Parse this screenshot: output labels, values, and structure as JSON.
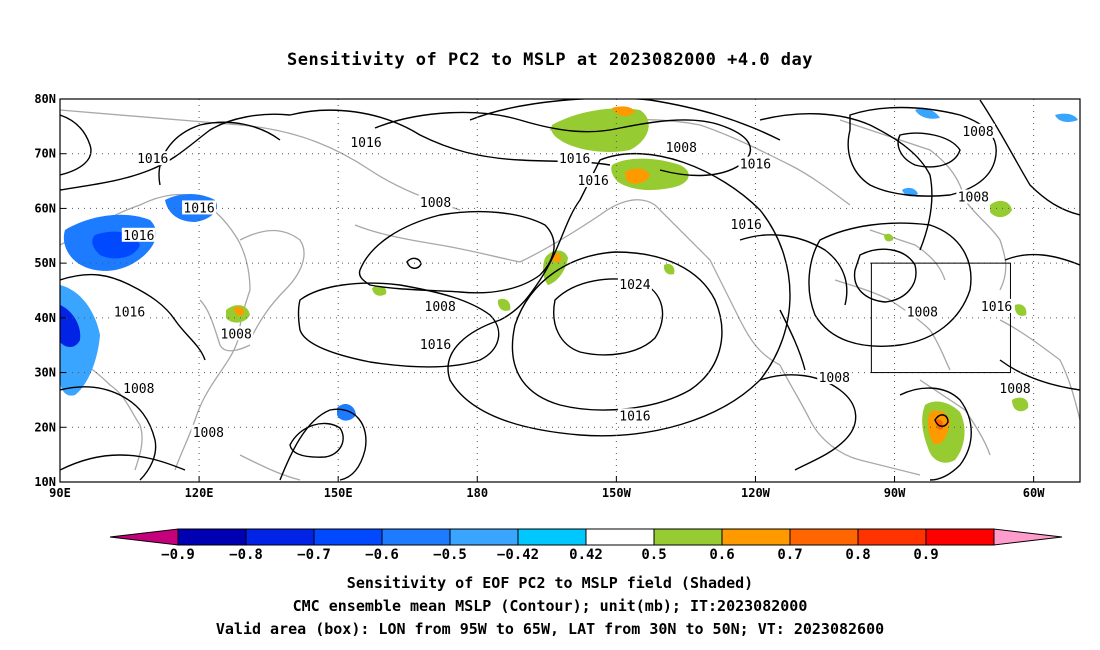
{
  "title": "Sensitivity of PC2 to MSLP at 2023082000 +4.0 day",
  "map": {
    "extent": {
      "lon_min": 90,
      "lon_max": 310,
      "lat_min": 10,
      "lat_max": 80
    },
    "lat_ticks": [
      {
        "value": 80,
        "label": "80N"
      },
      {
        "value": 70,
        "label": "70N"
      },
      {
        "value": 60,
        "label": "60N"
      },
      {
        "value": 50,
        "label": "50N"
      },
      {
        "value": 40,
        "label": "40N"
      },
      {
        "value": 30,
        "label": "30N"
      },
      {
        "value": 20,
        "label": "20N"
      },
      {
        "value": 10,
        "label": "10N"
      }
    ],
    "lon_ticks": [
      {
        "value": 90,
        "label": "90E"
      },
      {
        "value": 120,
        "label": "120E"
      },
      {
        "value": 150,
        "label": "150E"
      },
      {
        "value": 180,
        "label": "180"
      },
      {
        "value": 210,
        "label": "150W"
      },
      {
        "value": 240,
        "label": "120W"
      },
      {
        "value": 270,
        "label": "90W"
      },
      {
        "value": 300,
        "label": "60W"
      }
    ],
    "grid": "dotted",
    "contour_labels": [
      {
        "text": "1016",
        "lon": 156,
        "lat": 72
      },
      {
        "text": "1016",
        "lon": 110,
        "lat": 69
      },
      {
        "text": "1008",
        "lon": 224,
        "lat": 71
      },
      {
        "text": "1016",
        "lon": 201,
        "lat": 69
      },
      {
        "text": "1016",
        "lon": 240,
        "lat": 68
      },
      {
        "text": "1016",
        "lon": 205,
        "lat": 65
      },
      {
        "text": "1008",
        "lon": 288,
        "lat": 74
      },
      {
        "text": "1016",
        "lon": 120,
        "lat": 60
      },
      {
        "text": "1016",
        "lon": 107,
        "lat": 55
      },
      {
        "text": "1008",
        "lon": 171,
        "lat": 61
      },
      {
        "text": "1008",
        "lon": 287,
        "lat": 62
      },
      {
        "text": "1016",
        "lon": 238,
        "lat": 57
      },
      {
        "text": "1024",
        "lon": 214,
        "lat": 46
      },
      {
        "text": "1008",
        "lon": 172,
        "lat": 42
      },
      {
        "text": "1016",
        "lon": 105,
        "lat": 41
      },
      {
        "text": "1008",
        "lon": 276,
        "lat": 41
      },
      {
        "text": "1016",
        "lon": 292,
        "lat": 42
      },
      {
        "text": "1008",
        "lon": 128,
        "lat": 37
      },
      {
        "text": "1016",
        "lon": 171,
        "lat": 35
      },
      {
        "text": "1008",
        "lon": 107,
        "lat": 27
      },
      {
        "text": "1008",
        "lon": 257,
        "lat": 29
      },
      {
        "text": "1008",
        "lon": 296,
        "lat": 27
      },
      {
        "text": "1016",
        "lon": 214,
        "lat": 22
      },
      {
        "text": "1008",
        "lon": 122,
        "lat": 19
      }
    ],
    "valid_box": {
      "lon_min": 265,
      "lon_max": 295,
      "lat_min": 30,
      "lat_max": 50
    },
    "shaded_regions": [
      {
        "sign": "negative",
        "value": -0.6,
        "lon": 103,
        "lat": 55
      },
      {
        "sign": "negative",
        "value": -0.7,
        "lon": 93,
        "lat": 40
      },
      {
        "sign": "negative",
        "value": -0.5,
        "lon": 119,
        "lat": 60
      },
      {
        "sign": "positive",
        "value": 0.5,
        "lon": 203,
        "lat": 76
      },
      {
        "sign": "positive",
        "value": 0.6,
        "lon": 211,
        "lat": 67
      },
      {
        "sign": "positive",
        "value": 0.6,
        "lon": 189,
        "lat": 51
      },
      {
        "sign": "positive",
        "value": 0.6,
        "lon": 296,
        "lat": 20
      }
    ]
  },
  "colorbar": {
    "colors": [
      "#c4007b",
      "#0000b3",
      "#0023e6",
      "#0049ff",
      "#1c7bff",
      "#3aa5ff",
      "#00c8ff",
      "#ffffff",
      "#96cc32",
      "#ff9900",
      "#ff6600",
      "#ff3300",
      "#ff0000",
      "#ff9ccc"
    ],
    "labels": [
      "−0.9",
      "−0.8",
      "−0.7",
      "−0.6",
      "−0.5",
      "−0.42",
      "0.42",
      "0.5",
      "0.6",
      "0.7",
      "0.8",
      "0.9"
    ]
  },
  "captions": {
    "line1": "Sensitivity of EOF PC2 to MSLP field (Shaded)",
    "line2": "CMC ensemble mean MSLP (Contour); unit(mb); IT:2023082000",
    "line3": "Valid area (box): LON from 95W to 65W, LAT from 30N to 50N; VT: 2023082600"
  }
}
